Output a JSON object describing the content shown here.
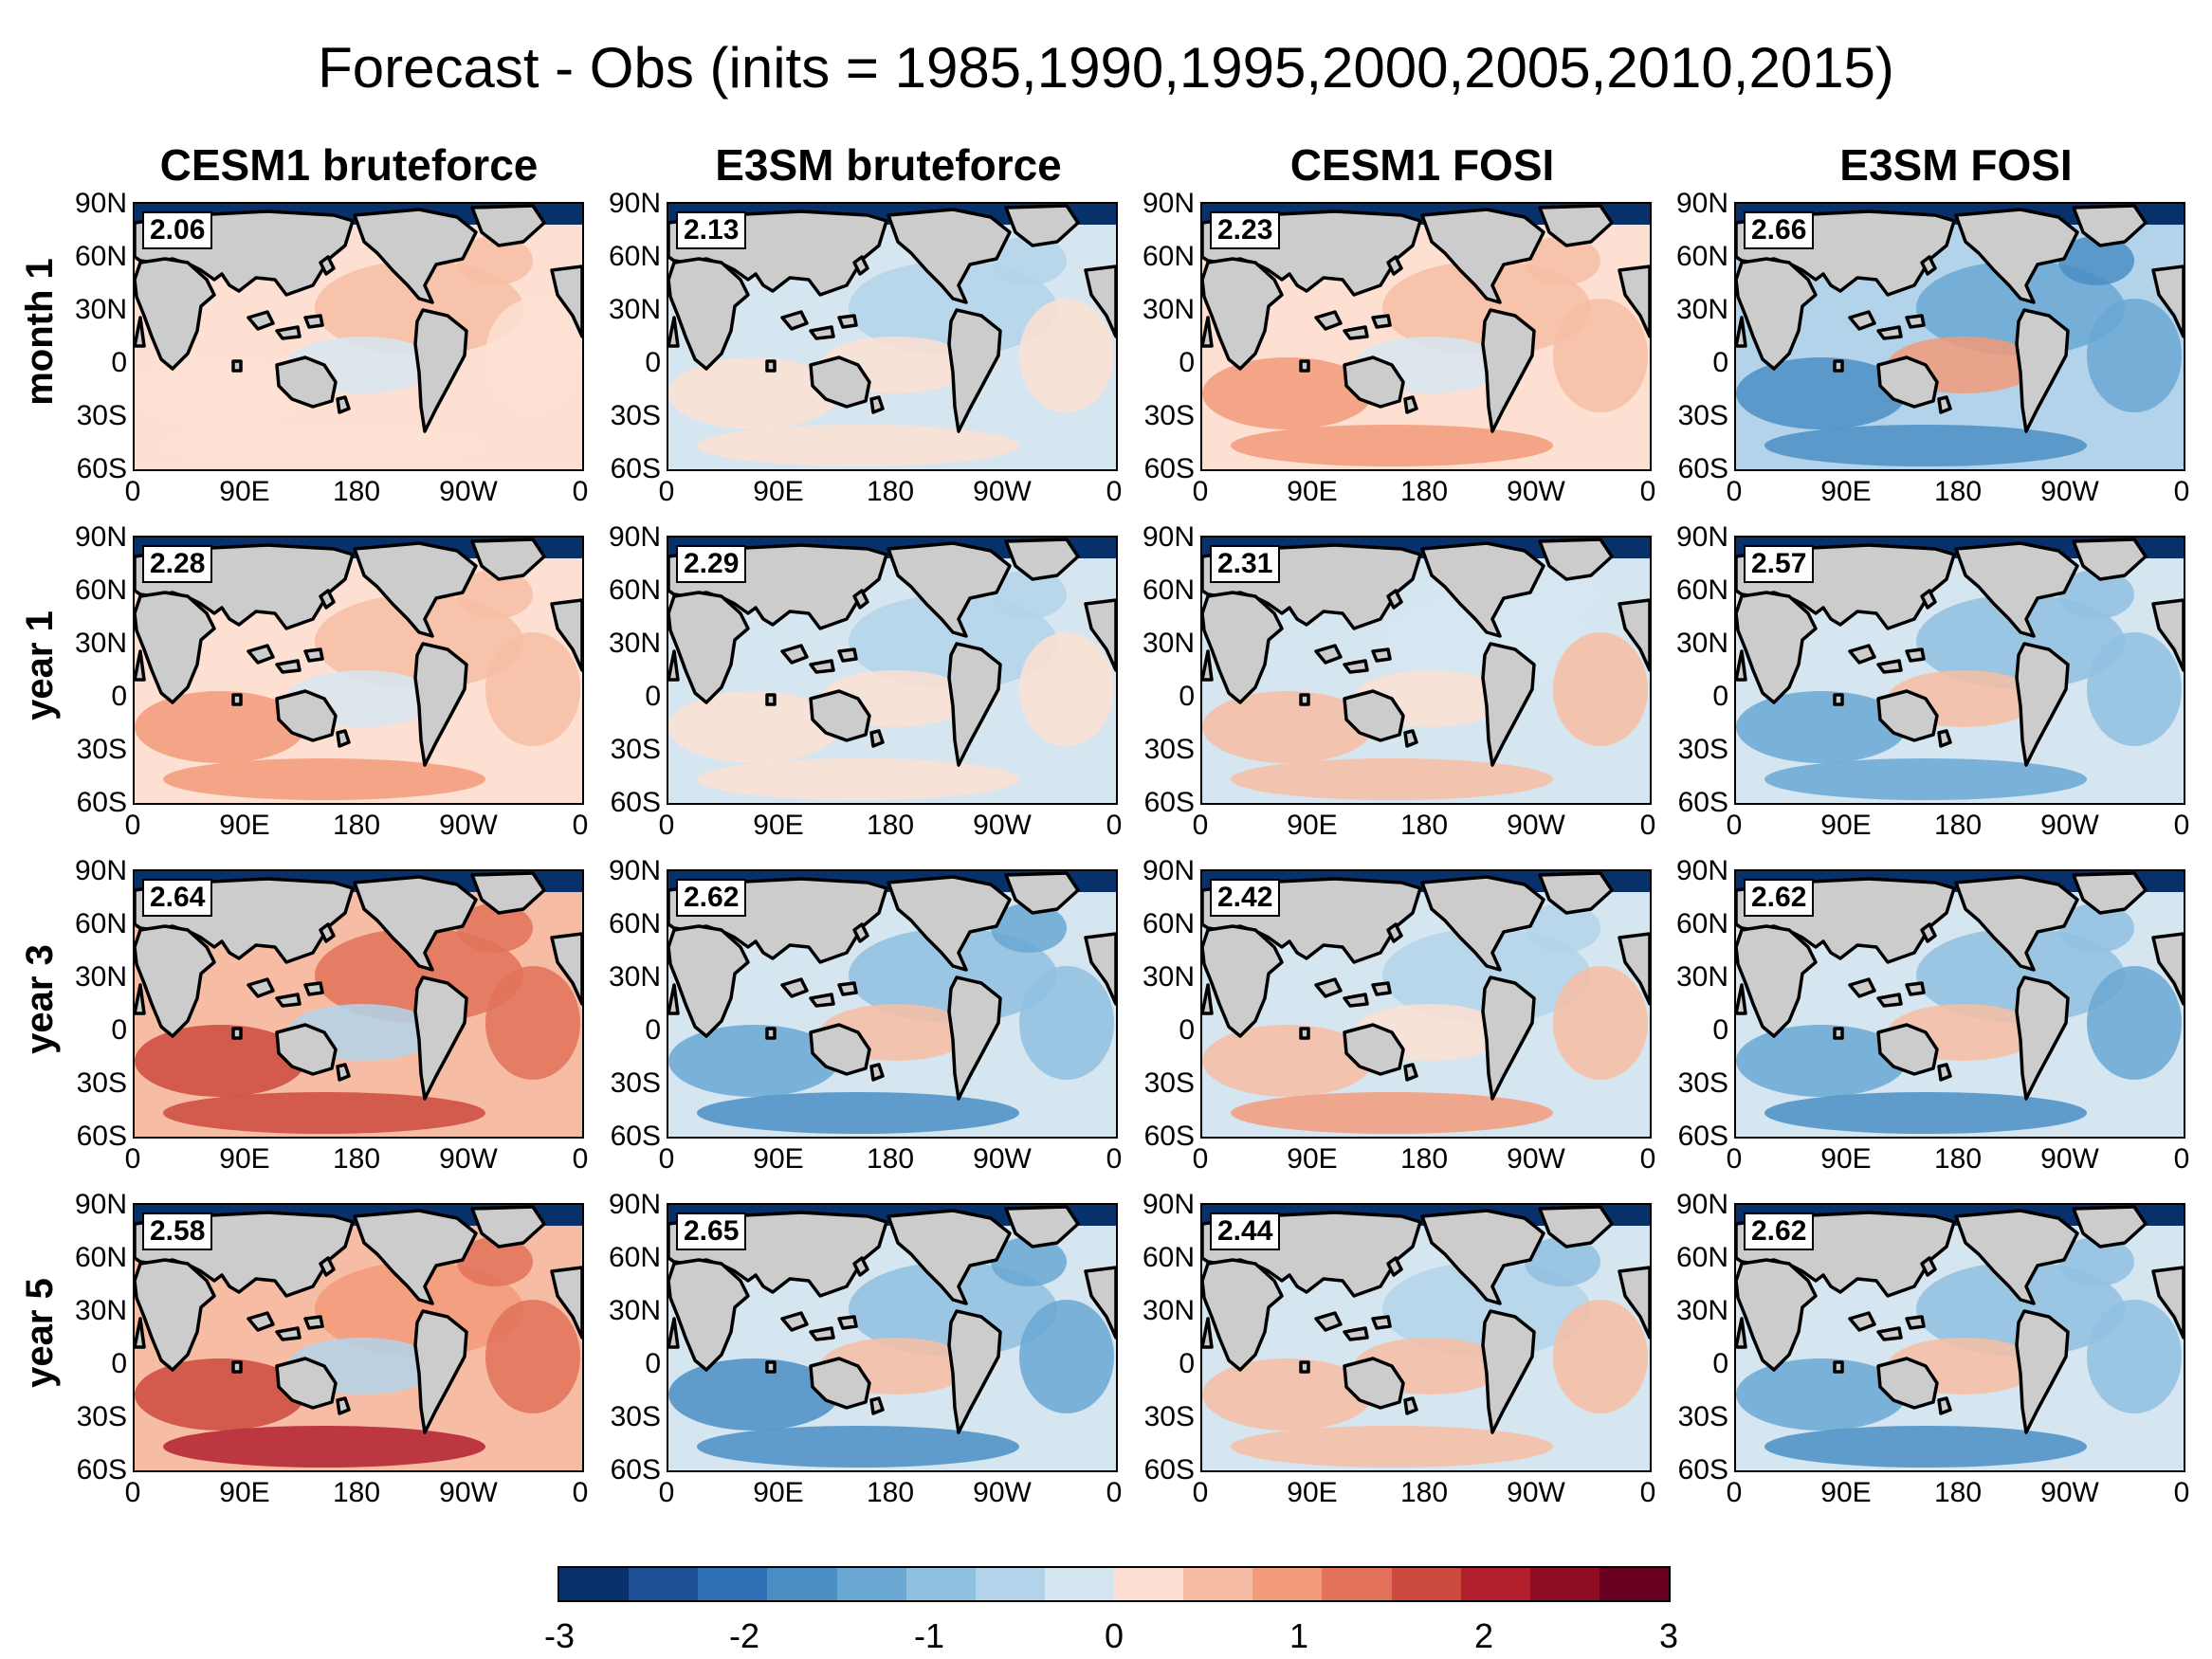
{
  "title": "Forecast - Obs (inits = 1985,1990,1995,2000,2005,2010,2015)",
  "columns": [
    "CESM1 bruteforce",
    "E3SM bruteforce",
    "CESM1 FOSI",
    "E3SM FOSI"
  ],
  "rows": [
    "month 1",
    "year 1",
    "year 3",
    "year 5"
  ],
  "values": [
    [
      "2.06",
      "2.13",
      "2.23",
      "2.66"
    ],
    [
      "2.28",
      "2.29",
      "2.31",
      "2.57"
    ],
    [
      "2.64",
      "2.62",
      "2.42",
      "2.62"
    ],
    [
      "2.58",
      "2.65",
      "2.44",
      "2.62"
    ]
  ],
  "lat_ticks": [
    "90N",
    "60N",
    "30N",
    "0",
    "30S",
    "60S"
  ],
  "lon_ticks": [
    "0",
    "90E",
    "180",
    "90W",
    "0"
  ],
  "colorbar": {
    "ticks": [
      "-3",
      "-2",
      "-1",
      "0",
      "1",
      "2",
      "3"
    ],
    "min": -3,
    "max": 3,
    "colors": [
      "#08306b",
      "#1c4f94",
      "#2f6fb5",
      "#4a8ec4",
      "#6aa7d3",
      "#90c0e0",
      "#b3d3ea",
      "#d6e6f1",
      "#fde0d2",
      "#f7bda4",
      "#f29a7a",
      "#e2725a",
      "#cc4a3f",
      "#b2202e",
      "#8e0c22",
      "#67001f"
    ]
  },
  "colors": {
    "land": "#cccccc",
    "coast": "#000000",
    "ocean_neutral": "#f8d6c6"
  }
}
